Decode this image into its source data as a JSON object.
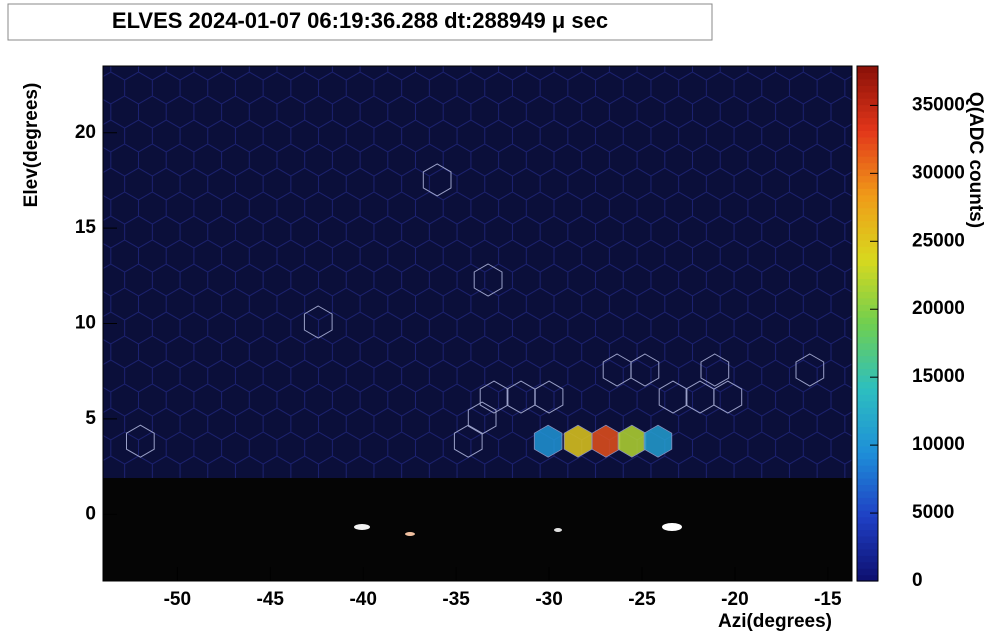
{
  "chart_data": {
    "type": "hexmap",
    "title": "ELVES 2024-01-07 06:19:36.288 dt:288949 μ sec",
    "x_label": "Azi(degrees)",
    "y_label": "Elev(degrees)",
    "z_label": "Q(ADC counts)",
    "xlim": [
      -54,
      -13.7
    ],
    "ylim": [
      -3.5,
      23.5
    ],
    "zlim": [
      0,
      37900
    ],
    "xticks": [
      -50,
      -45,
      -40,
      -35,
      -30,
      -25,
      -20,
      -15
    ],
    "yticks": [
      0,
      5,
      10,
      15,
      20
    ],
    "zticks": [
      0,
      5000,
      10000,
      15000,
      20000,
      25000,
      30000,
      35000
    ],
    "colorscale": [
      "#0d0f6e",
      "#1f3fc4",
      "#1e8fd8",
      "#2dbfbf",
      "#6fcf50",
      "#d8d81e",
      "#f09a18",
      "#e2361a",
      "#8a1008"
    ],
    "cells": {
      "azi": [
        -30.05,
        -28.44,
        -26.94,
        -25.54,
        -24.14
      ],
      "elev": [
        3.83,
        3.83,
        3.83,
        3.83,
        3.83
      ],
      "values": [
        10000,
        25000,
        32000,
        22000,
        11000
      ]
    },
    "outline_cells": {
      "azi": [
        -36.02,
        -33.28,
        -42.42,
        -51.99,
        -34.35,
        -33.6,
        -32.96,
        -31.51,
        -30.0,
        -26.34,
        -24.84,
        -23.33,
        -21.88,
        -20.38,
        -21.08,
        -15.97
      ],
      "elev": [
        17.53,
        12.28,
        10.08,
        3.83,
        3.83,
        5.04,
        6.14,
        6.14,
        6.14,
        7.56,
        7.56,
        6.14,
        6.14,
        6.14,
        7.56,
        7.56
      ]
    }
  }
}
